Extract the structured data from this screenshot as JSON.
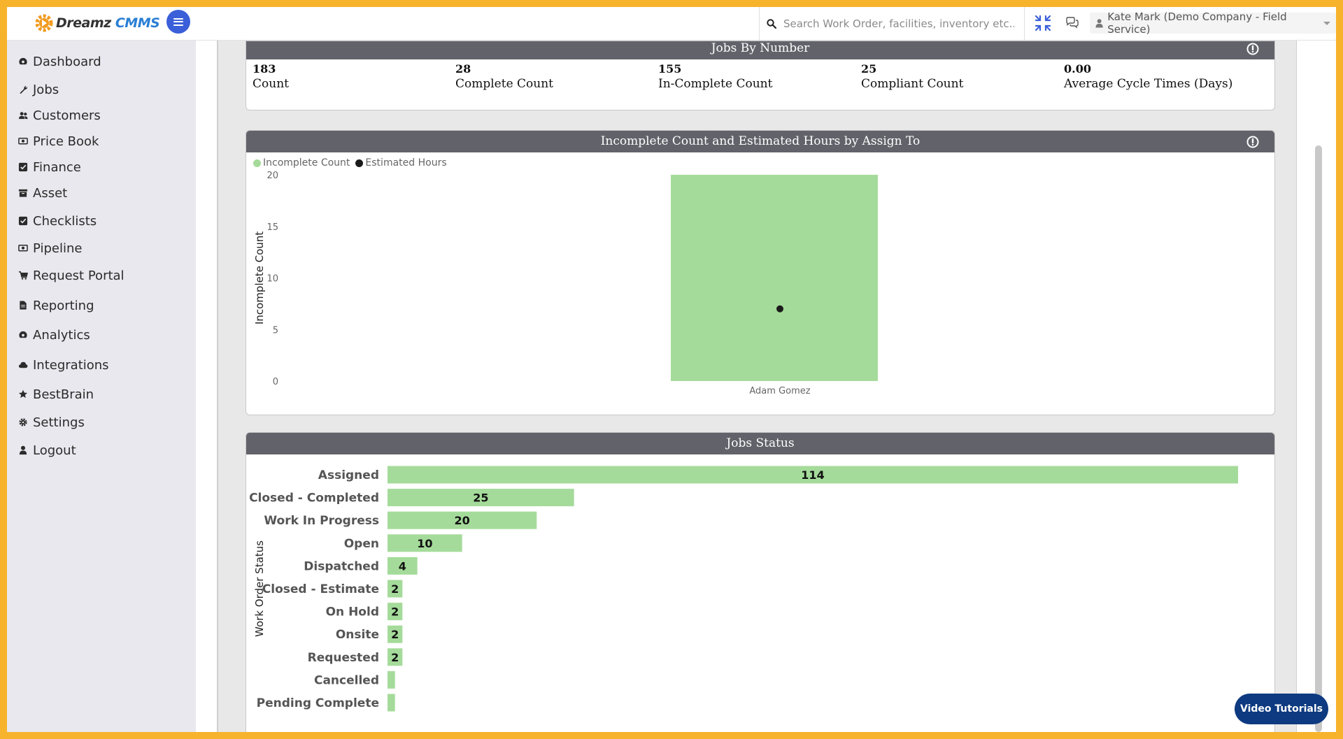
{
  "app": {
    "brand_main": "Dreamz",
    "brand_accent": "CMMS"
  },
  "header": {
    "search_placeholder": "Search Work Order, facilities, inventory etc...",
    "user_label": "Kate Mark (Demo Company - Field Service)"
  },
  "sidebar": {
    "items": [
      {
        "label": "Dashboard",
        "icon": "dashboard-icon"
      },
      {
        "label": "Jobs",
        "icon": "wrench-icon"
      },
      {
        "label": "Customers",
        "icon": "users-icon"
      },
      {
        "label": "Price Book",
        "icon": "money-icon"
      },
      {
        "label": "Finance",
        "icon": "check-square-icon"
      },
      {
        "label": "Asset",
        "icon": "archive-icon"
      },
      {
        "label": "Checklists",
        "icon": "check-square-icon"
      },
      {
        "label": "Pipeline",
        "icon": "money-icon"
      },
      {
        "label": "Request Portal",
        "icon": "cart-icon"
      },
      {
        "label": "Reporting",
        "icon": "file-icon"
      },
      {
        "label": "Analytics",
        "icon": "dashboard-icon"
      },
      {
        "label": "Integrations",
        "icon": "cloud-icon"
      },
      {
        "label": "BestBrain",
        "icon": "star-icon"
      },
      {
        "label": "Settings",
        "icon": "gear-icon"
      },
      {
        "label": "Logout",
        "icon": "user-icon"
      }
    ]
  },
  "jobs_by_number": {
    "title": "Jobs By Number",
    "stats": [
      {
        "value": "183",
        "label": "Count"
      },
      {
        "value": "28",
        "label": "Complete Count"
      },
      {
        "value": "155",
        "label": "In-Complete Count"
      },
      {
        "value": "25",
        "label": "Compliant Count"
      },
      {
        "value": "0.00",
        "label": "Average Cycle Times (Days)"
      }
    ]
  },
  "incomplete_panel": {
    "title": "Incomplete Count and Estimated Hours by Assign To"
  },
  "status_panel": {
    "title": "Jobs Status"
  },
  "video_tutorials_label": "Video Tutorials",
  "colors": {
    "bar_green": "#a5db9a",
    "header_gray": "#62626a",
    "accent_blue": "#3b5fd9",
    "button_navy": "#0d3a80"
  },
  "chart_data": [
    {
      "type": "bar",
      "title": "Incomplete Count and Estimated Hours by Assign To",
      "categories": [
        "Adam Gomez"
      ],
      "series": [
        {
          "name": "Incomplete Count",
          "values": [
            20
          ],
          "color": "#a5db9a"
        },
        {
          "name": "Estimated Hours",
          "values": [
            7
          ],
          "color": "#1a1a1a",
          "render": "point"
        }
      ],
      "ylabel": "Incomplete Count",
      "xlabel": "",
      "ylim": [
        0,
        20
      ],
      "yticks": [
        "0",
        "5",
        "10",
        "15",
        "20"
      ],
      "legend": "top-left"
    },
    {
      "type": "bar",
      "orientation": "horizontal",
      "title": "Jobs Status",
      "categories": [
        "Assigned",
        "Closed - Completed",
        "Work In Progress",
        "Open",
        "Dispatched",
        "Closed - Estimate",
        "On Hold",
        "Onsite",
        "Requested",
        "Cancelled",
        "Pending Complete"
      ],
      "values": [
        114,
        25,
        20,
        10,
        4,
        2,
        2,
        2,
        2,
        1,
        1
      ],
      "data_labels": [
        "114",
        "25",
        "20",
        "10",
        "4",
        "2",
        "2",
        "2",
        "2",
        "",
        ""
      ],
      "ylabel": "Work Order Status",
      "xlim": [
        0,
        114
      ]
    }
  ]
}
